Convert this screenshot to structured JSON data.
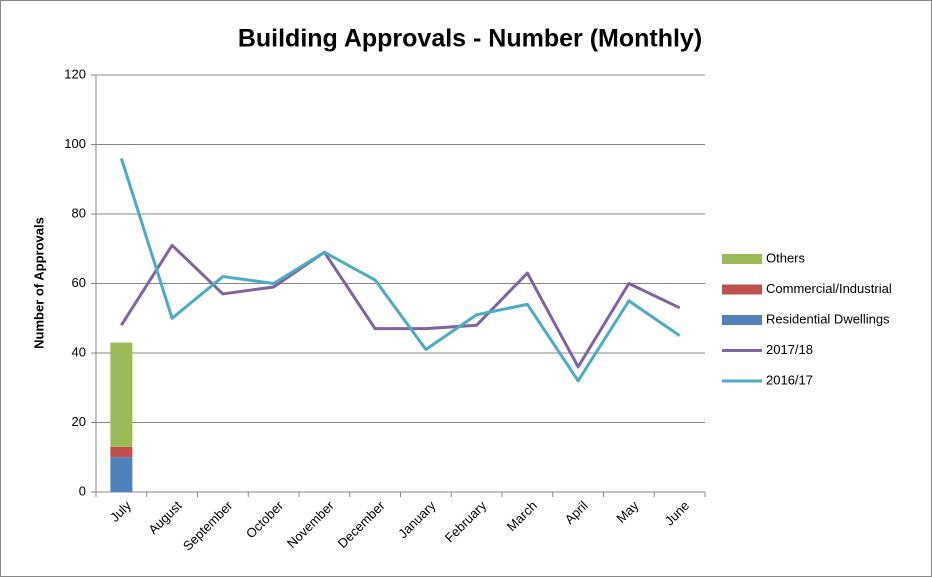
{
  "chart_data": {
    "type": "combo",
    "title": "Building Approvals - Number (Monthly)",
    "y_label": "Number of Approvals",
    "categories": [
      "July",
      "August",
      "September",
      "October",
      "November",
      "December",
      "January",
      "February",
      "March",
      "April",
      "May",
      "June"
    ],
    "series": [
      {
        "name": "Residential Dwellings",
        "type": "bar",
        "color": "#4f81bd",
        "values": [
          10,
          null,
          null,
          null,
          null,
          null,
          null,
          null,
          null,
          null,
          null,
          null
        ]
      },
      {
        "name": "Commercial/Industrial",
        "type": "bar",
        "color": "#c0504d",
        "values": [
          3,
          null,
          null,
          null,
          null,
          null,
          null,
          null,
          null,
          null,
          null,
          null
        ]
      },
      {
        "name": "Others",
        "type": "bar",
        "color": "#9bbb59",
        "values": [
          30,
          null,
          null,
          null,
          null,
          null,
          null,
          null,
          null,
          null,
          null,
          null
        ]
      },
      {
        "name": "2017/18",
        "type": "line",
        "color": "#8064a2",
        "values": [
          48,
          71,
          57,
          59,
          69,
          47,
          47,
          48,
          63,
          36,
          60,
          53
        ]
      },
      {
        "name": "2016/17",
        "type": "line",
        "color": "#4bacc6",
        "values": [
          96,
          50,
          62,
          60,
          69,
          61,
          41,
          51,
          54,
          32,
          55,
          45
        ]
      }
    ],
    "ylim": [
      0,
      120
    ],
    "yticks": [
      0,
      20,
      40,
      60,
      80,
      100,
      120
    ],
    "grid": true,
    "stacked": true,
    "legend": "right"
  }
}
